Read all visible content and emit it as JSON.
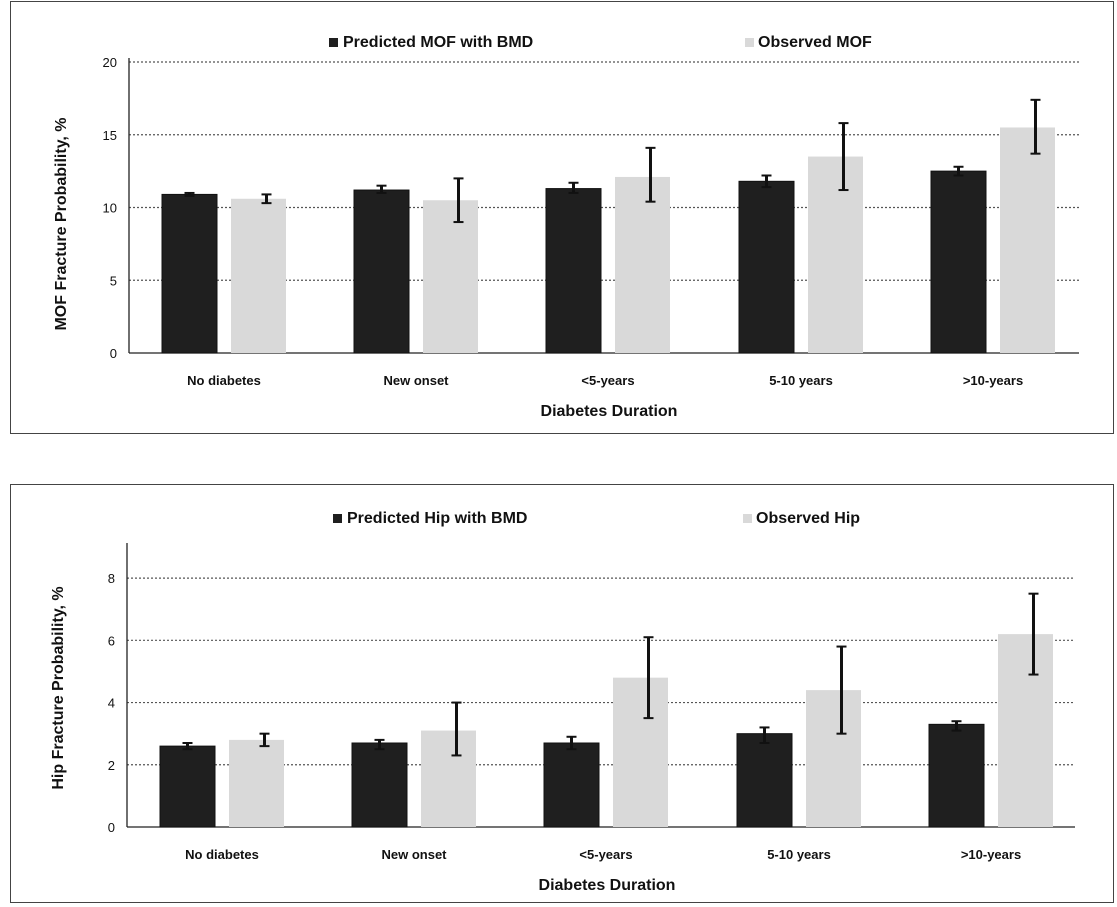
{
  "chart_data": [
    {
      "type": "bar",
      "xlabel": "Diabetes Duration",
      "ylabel": "MOF Fracture Probability, %",
      "ylim": [
        0,
        20
      ],
      "yticks": [
        0,
        5,
        10,
        15,
        20
      ],
      "grid": true,
      "legend_position": "top",
      "categories": [
        "No diabetes",
        "New onset",
        "<5-years",
        "5-10 years",
        ">10-years"
      ],
      "series": [
        {
          "name": "Predicted MOF with BMD",
          "color": "#1f1f1f",
          "values": [
            10.9,
            11.2,
            11.3,
            11.8,
            12.5
          ],
          "error_low": [
            10.8,
            11.0,
            11.0,
            11.4,
            12.2
          ],
          "error_high": [
            11.0,
            11.5,
            11.7,
            12.2,
            12.8
          ]
        },
        {
          "name": "Observed MOF",
          "color": "#d9d9d9",
          "values": [
            10.6,
            10.5,
            12.1,
            13.5,
            15.5
          ],
          "error_low": [
            10.3,
            9.0,
            10.4,
            11.2,
            13.7
          ],
          "error_high": [
            10.9,
            12.0,
            14.1,
            15.8,
            17.4
          ]
        }
      ]
    },
    {
      "type": "bar",
      "xlabel": "Diabetes Duration",
      "ylabel": "Hip Fracture Probability, %",
      "ylim": [
        0,
        9
      ],
      "yticks": [
        0,
        2,
        4,
        6,
        8
      ],
      "grid": true,
      "legend_position": "top",
      "categories": [
        "No diabetes",
        "New onset",
        "<5-years",
        "5-10 years",
        ">10-years"
      ],
      "series": [
        {
          "name": "Predicted Hip with BMD",
          "color": "#1f1f1f",
          "values": [
            2.6,
            2.7,
            2.7,
            3.0,
            3.3
          ],
          "error_low": [
            2.5,
            2.5,
            2.5,
            2.7,
            3.1
          ],
          "error_high": [
            2.7,
            2.8,
            2.9,
            3.2,
            3.4
          ]
        },
        {
          "name": "Observed Hip",
          "color": "#d9d9d9",
          "values": [
            2.8,
            3.1,
            4.8,
            4.4,
            6.2
          ],
          "error_low": [
            2.6,
            2.3,
            3.5,
            3.0,
            4.9
          ],
          "error_high": [
            3.0,
            4.0,
            6.1,
            5.8,
            7.5
          ]
        }
      ]
    }
  ]
}
